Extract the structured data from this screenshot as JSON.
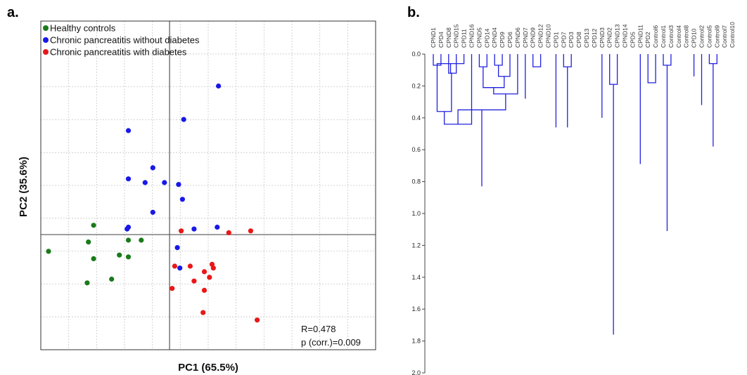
{
  "panels": {
    "a_letter": "a.",
    "b_letter": "b."
  },
  "colors": {
    "healthy": "#1a7a1a",
    "cp_no_diabetes": "#1818e8",
    "cp_diabetes": "#e81818",
    "dendrogram": "#2020e0",
    "grid": "#c8c8c8",
    "axis": "#555555"
  },
  "chart_data": [
    {
      "type": "scatter",
      "xlabel": "PC1 (65.5%)",
      "ylabel": "PC2 (35.6%)",
      "xlim": [
        -1.0,
        1.6
      ],
      "ylim": [
        -0.62,
        1.15
      ],
      "grid": true,
      "legend_position": "top-left",
      "annotations": [
        "R=0.478",
        "p (corr.)=0.009"
      ],
      "series": [
        {
          "name": "Healthy controls",
          "color": "#1a7a1a",
          "points": [
            [
              -0.94,
              -0.09
            ],
            [
              -0.63,
              -0.04
            ],
            [
              -0.59,
              0.05
            ],
            [
              -0.59,
              -0.13
            ],
            [
              -0.64,
              -0.26
            ],
            [
              -0.45,
              -0.24
            ],
            [
              -0.39,
              -0.11
            ],
            [
              -0.32,
              -0.12
            ],
            [
              -0.32,
              -0.03
            ],
            [
              -0.22,
              -0.03
            ]
          ]
        },
        {
          "name": "Chronic pancreatitis without diabetes",
          "color": "#1818e8",
          "points": [
            [
              -0.32,
              0.56
            ],
            [
              -0.32,
              0.3
            ],
            [
              -0.32,
              0.04
            ],
            [
              -0.33,
              0.03
            ],
            [
              -0.19,
              0.28
            ],
            [
              -0.13,
              0.36
            ],
            [
              -0.13,
              0.12
            ],
            [
              -0.04,
              0.28
            ],
            [
              0.11,
              0.62
            ],
            [
              0.1,
              0.19
            ],
            [
              0.07,
              0.27
            ],
            [
              0.19,
              0.03
            ],
            [
              0.06,
              -0.07
            ],
            [
              0.08,
              -0.18
            ],
            [
              0.38,
              0.8
            ],
            [
              0.37,
              0.04
            ]
          ]
        },
        {
          "name": "Chronic pancreatitis with diabetes",
          "color": "#e81818",
          "points": [
            [
              0.09,
              0.02
            ],
            [
              0.04,
              -0.17
            ],
            [
              0.16,
              -0.17
            ],
            [
              0.02,
              -0.29
            ],
            [
              0.19,
              -0.25
            ],
            [
              0.27,
              -0.2
            ],
            [
              0.31,
              -0.23
            ],
            [
              0.33,
              -0.16
            ],
            [
              0.34,
              -0.18
            ],
            [
              0.27,
              -0.3
            ],
            [
              0.26,
              -0.42
            ],
            [
              0.46,
              0.01
            ],
            [
              0.63,
              0.02
            ],
            [
              0.68,
              -0.46
            ]
          ]
        }
      ]
    },
    {
      "type": "dendrogram",
      "color": "#2020e0",
      "ylim": [
        0,
        2
      ],
      "yticks": [
        "0.0",
        "0.2",
        "0.4",
        "0.6",
        "0.8",
        "1.0",
        "1.2",
        "1.4",
        "1.6",
        "1.8",
        "2.0"
      ],
      "leaves": [
        "CPND1",
        "CPD4",
        "CPND8",
        "CPND15",
        "CPD11",
        "CPND16",
        "CPND5",
        "CPD14",
        "CPND4",
        "CPD9",
        "CPD6",
        "CPND6",
        "CPND7",
        "CPND9",
        "CPND12",
        "CPND10",
        "CPD1",
        "CPD7",
        "CPD3",
        "CPD8",
        "CPD13",
        "CPD12",
        "CPND3",
        "CPND2",
        "CPND13",
        "CPND14",
        "CPD5",
        "CPND11",
        "CPD2",
        "Control6",
        "Control1",
        "Control3",
        "Control4",
        "Control8",
        "CPD10",
        "Control2",
        "Control5",
        "Control9",
        "Control7",
        "Control10"
      ],
      "merges": [
        [
          0,
          1,
          0.07
        ],
        [
          2,
          3,
          0.12
        ],
        [
          40,
          4,
          0.06
        ],
        [
          41,
          42,
          0.12
        ],
        [
          43,
          40,
          0.36
        ],
        [
          44,
          5,
          0.44
        ],
        [
          6,
          7,
          0.08
        ],
        [
          8,
          9,
          0.07
        ],
        [
          47,
          10,
          0.14
        ],
        [
          46,
          48,
          0.21
        ],
        [
          49,
          11,
          0.25
        ],
        [
          45,
          50,
          0.35
        ],
        [
          13,
          14,
          0.08
        ],
        [
          53,
          15,
          0.21
        ],
        [
          12,
          54,
          0.28
        ],
        [
          17,
          18,
          0.08
        ],
        [
          56,
          19,
          0.15
        ],
        [
          57,
          20,
          0.18
        ],
        [
          58,
          21,
          0.3
        ],
        [
          16,
          59,
          0.46
        ],
        [
          55,
          60,
          0.46
        ],
        [
          51,
          61,
          0.83
        ],
        [
          23,
          24,
          0.19
        ],
        [
          63,
          25,
          0.29
        ],
        [
          22,
          64,
          0.4
        ],
        [
          65,
          26,
          0.6
        ],
        [
          30,
          31,
          0.07
        ],
        [
          67,
          32,
          0.17
        ],
        [
          68,
          33,
          0.07
        ],
        [
          28,
          29,
          0.18
        ],
        [
          70,
          69,
          0.32
        ],
        [
          36,
          37,
          0.06
        ],
        [
          72,
          38,
          0.07
        ],
        [
          73,
          39,
          0.21
        ],
        [
          35,
          74,
          0.32
        ],
        [
          34,
          75,
          0.14
        ],
        [
          71,
          76,
          0.58
        ],
        [
          27,
          77,
          0.69
        ],
        [
          66,
          78,
          1.11
        ],
        [
          62,
          79,
          1.76
        ]
      ]
    }
  ]
}
